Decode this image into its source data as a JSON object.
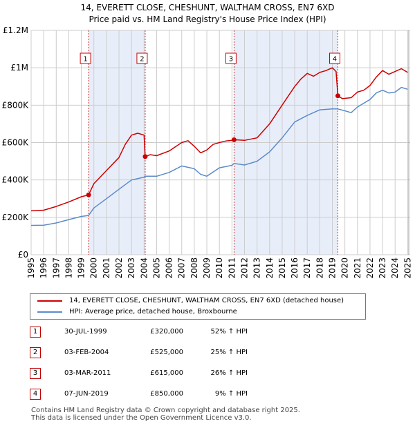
{
  "title": "14, EVERETT CLOSE, CHESHUNT, WALTHAM CROSS, EN7 6XD",
  "subtitle": "Price paid vs. HM Land Registry's House Price Index (HPI)",
  "colors": {
    "price_line": "#cc0000",
    "hpi_line": "#5b8bc9",
    "shade": "#e8eef9",
    "grid": "#cccccc",
    "marker": "#cc0000"
  },
  "chart_data": {
    "type": "line",
    "x_range": [
      1995.0,
      2025.2
    ],
    "ylim": [
      0,
      1200000
    ],
    "y_ticks": [
      {
        "value": 0,
        "label": "£0"
      },
      {
        "value": 200000,
        "label": "£200K"
      },
      {
        "value": 400000,
        "label": "£400K"
      },
      {
        "value": 600000,
        "label": "£600K"
      },
      {
        "value": 800000,
        "label": "£800K"
      },
      {
        "value": 1000000,
        "label": "£1M"
      },
      {
        "value": 1200000,
        "label": "£1.2M"
      }
    ],
    "x_ticks": [
      "1995",
      "1996",
      "1997",
      "1998",
      "1999",
      "2000",
      "2001",
      "2002",
      "2003",
      "2004",
      "2005",
      "2006",
      "2007",
      "2008",
      "2009",
      "2010",
      "2011",
      "2012",
      "2013",
      "2014",
      "2015",
      "2016",
      "2017",
      "2018",
      "2019",
      "2020",
      "2021",
      "2022",
      "2023",
      "2024",
      "2025"
    ],
    "shaded_periods": [
      [
        1999.58,
        2004.09
      ],
      [
        2011.17,
        2019.44
      ]
    ],
    "series": [
      {
        "name": "14, EVERETT CLOSE, CHESHUNT, WALTHAM CROSS, EN7 6XD (detached house)",
        "x": [
          1995.0,
          1996.0,
          1997.0,
          1998.0,
          1999.0,
          1999.58,
          2000.0,
          2001.0,
          2002.0,
          2002.5,
          2003.0,
          2003.5,
          2004.0,
          2004.09,
          2004.5,
          2005.0,
          2006.0,
          2007.0,
          2007.5,
          2008.0,
          2008.5,
          2009.0,
          2009.5,
          2010.0,
          2010.5,
          2011.0,
          2011.17,
          2012.0,
          2013.0,
          2014.0,
          2015.0,
          2016.0,
          2016.5,
          2017.0,
          2017.5,
          2018.0,
          2018.5,
          2019.0,
          2019.3,
          2019.44,
          2019.8,
          2020.5,
          2021.0,
          2021.5,
          2022.0,
          2022.5,
          2023.0,
          2023.5,
          2024.0,
          2024.5,
          2025.0
        ],
        "values": [
          235000,
          238000,
          258000,
          282000,
          310000,
          320000,
          380000,
          450000,
          520000,
          590000,
          640000,
          650000,
          640000,
          525000,
          535000,
          530000,
          555000,
          600000,
          610000,
          580000,
          545000,
          560000,
          590000,
          600000,
          608000,
          612000,
          615000,
          612000,
          625000,
          700000,
          800000,
          900000,
          940000,
          970000,
          955000,
          975000,
          985000,
          1000000,
          980000,
          850000,
          835000,
          840000,
          870000,
          880000,
          905000,
          950000,
          985000,
          965000,
          980000,
          995000,
          975000
        ]
      },
      {
        "name": "HPI: Average price, detached house, Broxbourne",
        "x": [
          1995.0,
          1996.0,
          1997.0,
          1998.0,
          1999.0,
          1999.58,
          2000.0,
          2001.0,
          2002.0,
          2003.0,
          2004.0,
          2004.09,
          2005.0,
          2006.0,
          2007.0,
          2008.0,
          2008.5,
          2009.0,
          2010.0,
          2011.0,
          2011.17,
          2012.0,
          2013.0,
          2014.0,
          2015.0,
          2016.0,
          2017.0,
          2018.0,
          2019.0,
          2019.44,
          2020.0,
          2020.5,
          2021.0,
          2022.0,
          2022.5,
          2023.0,
          2023.5,
          2024.0,
          2024.5,
          2025.0
        ],
        "values": [
          157000,
          158000,
          170000,
          188000,
          205000,
          210000,
          250000,
          300000,
          350000,
          400000,
          415000,
          420000,
          420000,
          440000,
          475000,
          460000,
          430000,
          420000,
          465000,
          478000,
          488000,
          480000,
          500000,
          550000,
          625000,
          710000,
          745000,
          775000,
          780000,
          780000,
          770000,
          760000,
          790000,
          830000,
          865000,
          880000,
          865000,
          870000,
          895000,
          885000
        ]
      }
    ],
    "sales": [
      {
        "num": "1",
        "x": 1999.58,
        "price": 320000
      },
      {
        "num": "2",
        "x": 2004.09,
        "price": 525000
      },
      {
        "num": "3",
        "x": 2011.17,
        "price": 615000
      },
      {
        "num": "4",
        "x": 2019.44,
        "price": 850000
      }
    ]
  },
  "legend": {
    "price_label": "14, EVERETT CLOSE, CHESHUNT, WALTHAM CROSS, EN7 6XD (detached house)",
    "hpi_label": "HPI: Average price, detached house, Broxbourne"
  },
  "sales_table": [
    {
      "num": "1",
      "date": "30-JUL-1999",
      "price": "£320,000",
      "hpi": "52% ↑ HPI"
    },
    {
      "num": "2",
      "date": "03-FEB-2004",
      "price": "£525,000",
      "hpi": "25% ↑ HPI"
    },
    {
      "num": "3",
      "date": "03-MAR-2011",
      "price": "£615,000",
      "hpi": "26% ↑ HPI"
    },
    {
      "num": "4",
      "date": "07-JUN-2019",
      "price": "£850,000",
      "hpi": "9% ↑ HPI"
    }
  ],
  "footer": {
    "line1": "Contains HM Land Registry data © Crown copyright and database right 2025.",
    "line2": "This data is licensed under the Open Government Licence v3.0."
  }
}
